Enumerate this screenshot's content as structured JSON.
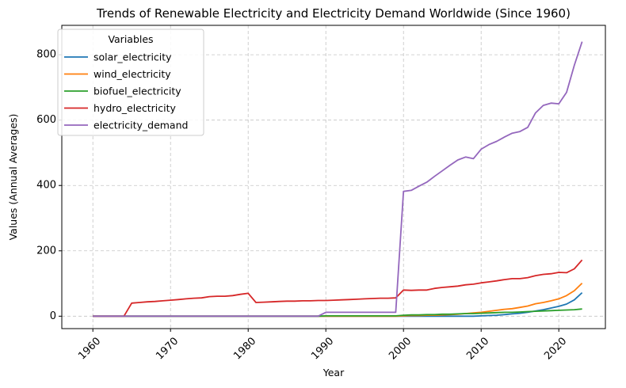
{
  "chart_data": {
    "type": "line",
    "title": "Trends of Renewable Electricity and Electricity Demand Worldwide (Since 1960)",
    "xlabel": "Year",
    "ylabel": "Values (Annual Averages)",
    "xlim": [
      1956,
      2026
    ],
    "ylim": [
      -38,
      890
    ],
    "xticks": [
      1960,
      1970,
      1980,
      1990,
      2000,
      2010,
      2020
    ],
    "yticks": [
      0,
      200,
      400,
      600,
      800
    ],
    "grid": true,
    "legend": {
      "title": "Variables",
      "placement": "upper-left"
    },
    "x": [
      1960,
      1961,
      1962,
      1963,
      1964,
      1965,
      1966,
      1967,
      1968,
      1969,
      1970,
      1971,
      1972,
      1973,
      1974,
      1975,
      1976,
      1977,
      1978,
      1979,
      1980,
      1981,
      1982,
      1983,
      1984,
      1985,
      1986,
      1987,
      1988,
      1989,
      1990,
      1991,
      1992,
      1993,
      1994,
      1995,
      1996,
      1997,
      1998,
      1999,
      2000,
      2001,
      2002,
      2003,
      2004,
      2005,
      2006,
      2007,
      2008,
      2009,
      2010,
      2011,
      2012,
      2013,
      2014,
      2015,
      2016,
      2017,
      2018,
      2019,
      2020,
      2021,
      2022,
      2023
    ],
    "series": [
      {
        "name": "solar_electricity",
        "color": "#1f77b4",
        "values": [
          0,
          0,
          0,
          0,
          0,
          0,
          0,
          0,
          0,
          0,
          0,
          0,
          0,
          0,
          0,
          0,
          0,
          0,
          0,
          0,
          0,
          0,
          0,
          0,
          0,
          0,
          0,
          0,
          0,
          0,
          0,
          0,
          0,
          0,
          0,
          0,
          0,
          0,
          0,
          0,
          0,
          0,
          0,
          0,
          0,
          0,
          0,
          0,
          0,
          0,
          1,
          2,
          3,
          5,
          7,
          9,
          12,
          16,
          20,
          25,
          30,
          37,
          50,
          72
        ]
      },
      {
        "name": "wind_electricity",
        "color": "#ff7f0e",
        "values": [
          0,
          0,
          0,
          0,
          0,
          0,
          0,
          0,
          0,
          0,
          0,
          0,
          0,
          0,
          0,
          0,
          0,
          0,
          0,
          0,
          0,
          0,
          0,
          0,
          0,
          0,
          0,
          0,
          0,
          0,
          0,
          0,
          0,
          0,
          0,
          0,
          0,
          0,
          0,
          0,
          1,
          2,
          2,
          3,
          3,
          4,
          5,
          6,
          8,
          10,
          12,
          15,
          18,
          21,
          23,
          27,
          31,
          38,
          42,
          47,
          53,
          63,
          78,
          101
        ]
      },
      {
        "name": "biofuel_electricity",
        "color": "#2ca02c",
        "values": [
          0,
          0,
          0,
          0,
          0,
          0,
          0,
          0,
          0,
          0,
          0,
          0,
          0,
          0,
          0,
          0,
          0,
          0,
          0,
          0,
          0,
          0,
          0,
          0,
          0,
          0,
          0,
          0,
          0,
          0,
          1,
          1,
          1,
          1,
          1,
          1,
          1,
          1,
          1,
          1,
          3,
          4,
          4,
          5,
          5,
          6,
          6,
          7,
          8,
          8,
          9,
          10,
          11,
          12,
          12,
          13,
          14,
          15,
          16,
          17,
          18,
          19,
          20,
          22
        ]
      },
      {
        "name": "hydro_electricity",
        "color": "#d62728",
        "values": [
          0,
          0,
          0,
          0,
          0,
          40,
          42,
          44,
          45,
          47,
          49,
          51,
          53,
          55,
          56,
          60,
          61,
          61,
          63,
          67,
          70,
          42,
          43,
          44,
          45,
          46,
          46,
          47,
          47,
          48,
          48,
          49,
          50,
          51,
          52,
          53,
          54,
          55,
          55,
          56,
          80,
          79,
          80,
          80,
          85,
          88,
          90,
          92,
          96,
          98,
          102,
          105,
          108,
          112,
          115,
          115,
          118,
          124,
          128,
          130,
          134,
          133,
          145,
          172
        ]
      },
      {
        "name": "electricity_demand",
        "color": "#9467bd",
        "values": [
          0,
          0,
          0,
          0,
          0,
          0,
          0,
          0,
          0,
          0,
          0,
          0,
          0,
          0,
          0,
          0,
          0,
          0,
          0,
          0,
          0,
          0,
          0,
          0,
          0,
          0,
          0,
          0,
          0,
          0,
          12,
          12,
          12,
          12,
          12,
          12,
          12,
          12,
          12,
          12,
          382,
          385,
          398,
          410,
          428,
          445,
          462,
          478,
          487,
          482,
          511,
          525,
          535,
          548,
          560,
          565,
          578,
          622,
          645,
          652,
          650,
          685,
          768,
          840
        ]
      }
    ]
  }
}
